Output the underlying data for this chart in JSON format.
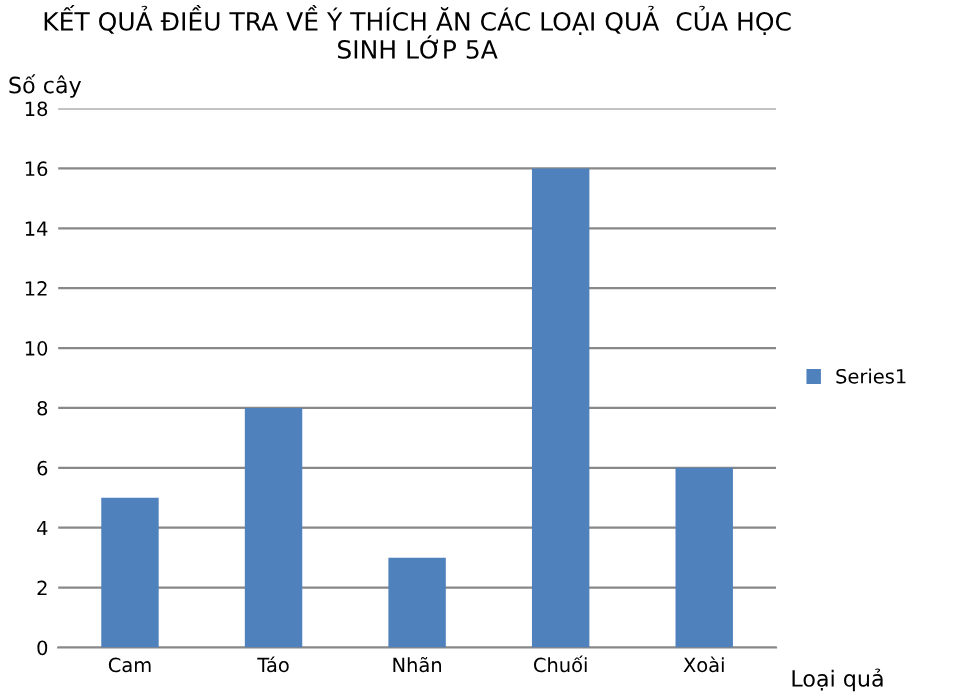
{
  "chart_data": {
    "type": "bar",
    "title": "KẾT QUẢ ĐIỀU TRA VỀ Ý THÍCH ĂN CÁC LOẠI QUẢ  CỦA HỌC\nSINH LỚP 5A",
    "ylabel": "Số cây",
    "xlabel": "Loại quả",
    "categories": [
      "Cam",
      "Táo",
      "Nhãn",
      "Chuối",
      "Xoài"
    ],
    "series": [
      {
        "name": "Series1",
        "color": "#4f81bd",
        "values": [
          5,
          8,
          3,
          16,
          6
        ]
      }
    ],
    "ylim": [
      0,
      18
    ],
    "yticks": [
      0,
      2,
      4,
      6,
      8,
      10,
      12,
      14,
      16,
      18
    ],
    "grid": "y",
    "legend": "right"
  }
}
